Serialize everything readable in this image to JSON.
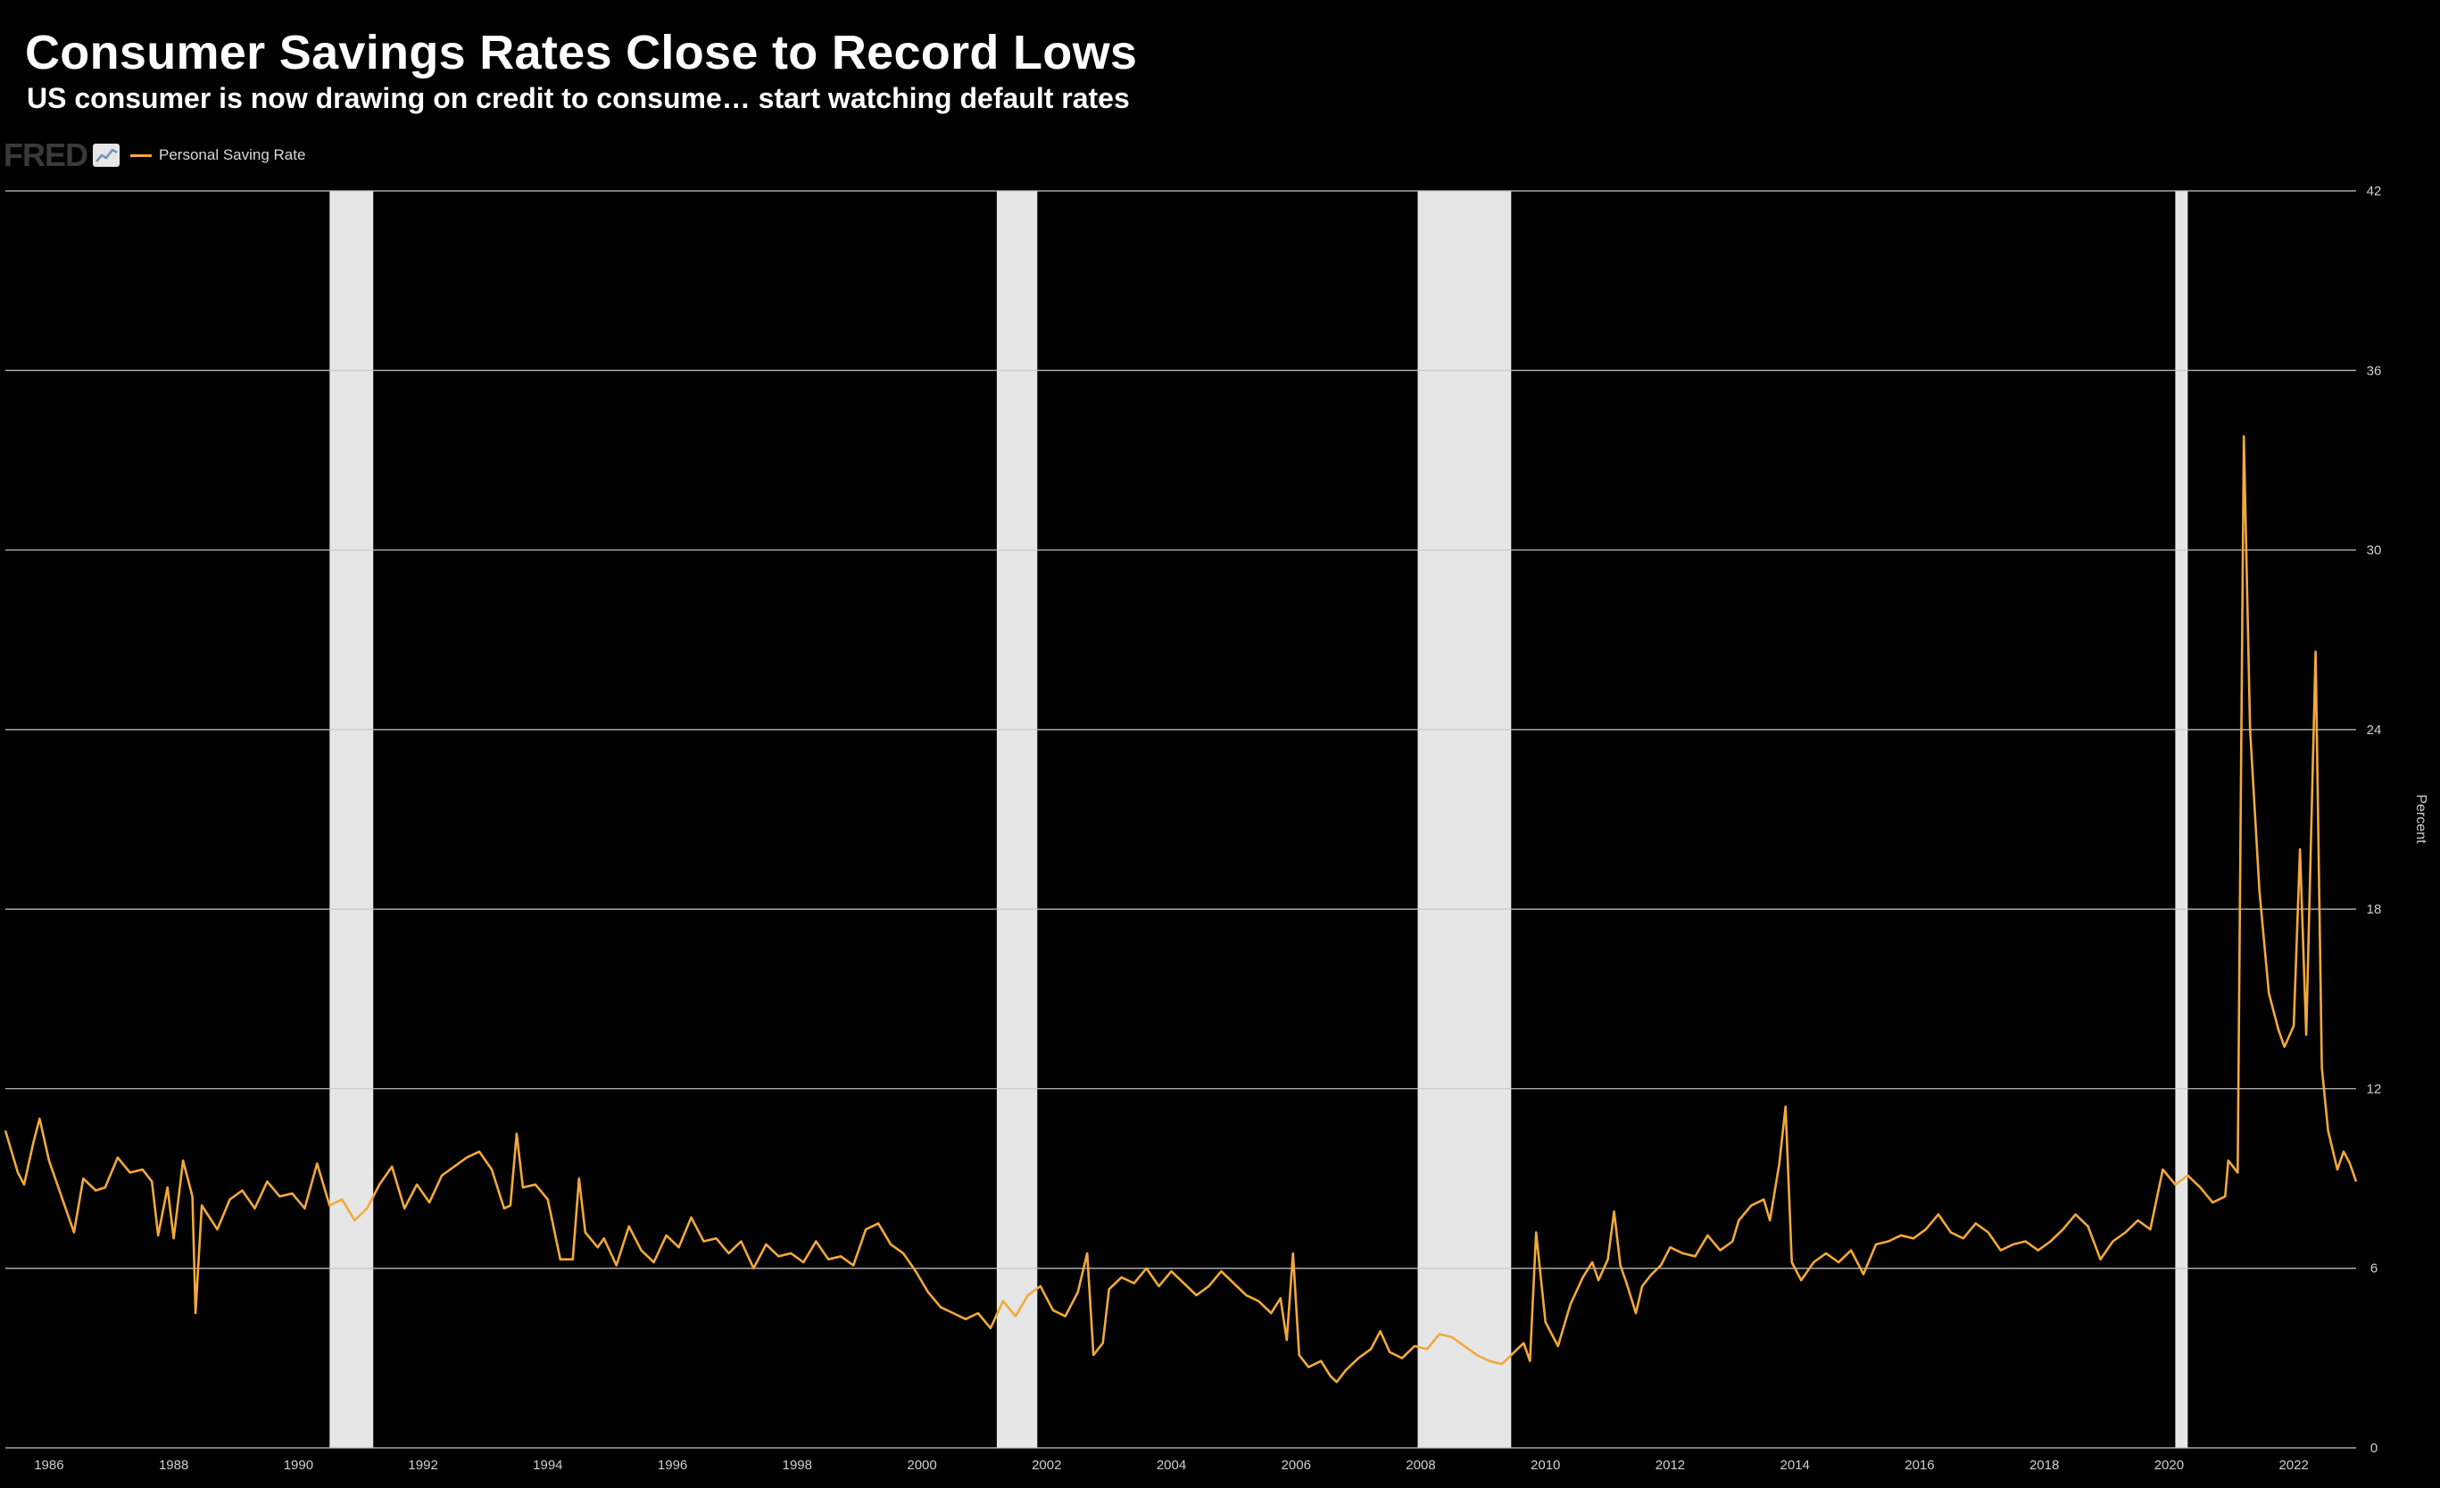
{
  "header": {
    "title": "Consumer Savings Rates Close to Record Lows",
    "subtitle": "US consumer is now drawing on credit to consume… start watching default rates"
  },
  "branding": {
    "logo_text": "FRED",
    "badge_icon": "chart-line-icon"
  },
  "legend": {
    "label": "Personal Saving Rate"
  },
  "colors": {
    "background": "#000000",
    "series": "#f2a93b",
    "recession": "#e6e6e6",
    "grid": "#c8c8c8"
  },
  "chart_data": {
    "type": "line",
    "xlabel": "",
    "ylabel": "Percent",
    "xlim": [
      1985.3,
      2023.0
    ],
    "ylim": [
      0,
      42
    ],
    "yticks": [
      0,
      6,
      12,
      18,
      24,
      30,
      36,
      42
    ],
    "xticks": [
      "1986",
      "1988",
      "1990",
      "1992",
      "1994",
      "1996",
      "1998",
      "2000",
      "2002",
      "2004",
      "2006",
      "2008",
      "2010",
      "2012",
      "2014",
      "2016",
      "2018",
      "2020",
      "2022"
    ],
    "grid": true,
    "legend_position": "top-left",
    "y_axis_position": "right",
    "recessions": [
      [
        1990.5,
        1991.2
      ],
      [
        2001.2,
        2001.85
      ],
      [
        2007.95,
        2009.45
      ],
      [
        2020.1,
        2020.3
      ]
    ],
    "series": [
      {
        "name": "Personal Saving Rate",
        "points": [
          [
            1985.3,
            10.6
          ],
          [
            1985.5,
            9.2
          ],
          [
            1985.6,
            8.8
          ],
          [
            1985.75,
            10.2
          ],
          [
            1985.85,
            11.0
          ],
          [
            1986.0,
            9.6
          ],
          [
            1986.2,
            8.4
          ],
          [
            1986.4,
            7.2
          ],
          [
            1986.55,
            9.0
          ],
          [
            1986.75,
            8.6
          ],
          [
            1986.9,
            8.7
          ],
          [
            1987.1,
            9.7
          ],
          [
            1987.3,
            9.2
          ],
          [
            1987.5,
            9.3
          ],
          [
            1987.65,
            8.9
          ],
          [
            1987.75,
            7.1
          ],
          [
            1987.9,
            8.7
          ],
          [
            1988.0,
            7.0
          ],
          [
            1988.15,
            9.6
          ],
          [
            1988.3,
            8.4
          ],
          [
            1988.35,
            4.5
          ],
          [
            1988.45,
            8.1
          ],
          [
            1988.7,
            7.3
          ],
          [
            1988.9,
            8.3
          ],
          [
            1989.1,
            8.6
          ],
          [
            1989.3,
            8.0
          ],
          [
            1989.5,
            8.9
          ],
          [
            1989.7,
            8.4
          ],
          [
            1989.9,
            8.5
          ],
          [
            1990.1,
            8.0
          ],
          [
            1990.3,
            9.5
          ],
          [
            1990.5,
            8.1
          ],
          [
            1990.7,
            8.3
          ],
          [
            1990.9,
            7.6
          ],
          [
            1991.1,
            8.0
          ],
          [
            1991.3,
            8.8
          ],
          [
            1991.5,
            9.4
          ],
          [
            1991.7,
            8.0
          ],
          [
            1991.9,
            8.8
          ],
          [
            1992.1,
            8.2
          ],
          [
            1992.3,
            9.1
          ],
          [
            1992.5,
            9.4
          ],
          [
            1992.7,
            9.7
          ],
          [
            1992.9,
            9.9
          ],
          [
            1993.1,
            9.3
          ],
          [
            1993.3,
            8.0
          ],
          [
            1993.4,
            8.1
          ],
          [
            1993.5,
            10.5
          ],
          [
            1993.6,
            8.7
          ],
          [
            1993.8,
            8.8
          ],
          [
            1994.0,
            8.3
          ],
          [
            1994.2,
            6.3
          ],
          [
            1994.4,
            6.3
          ],
          [
            1994.5,
            9.0
          ],
          [
            1994.6,
            7.2
          ],
          [
            1994.8,
            6.7
          ],
          [
            1994.9,
            7.0
          ],
          [
            1995.1,
            6.1
          ],
          [
            1995.3,
            7.4
          ],
          [
            1995.5,
            6.6
          ],
          [
            1995.7,
            6.2
          ],
          [
            1995.9,
            7.1
          ],
          [
            1996.1,
            6.7
          ],
          [
            1996.3,
            7.7
          ],
          [
            1996.5,
            6.9
          ],
          [
            1996.7,
            7.0
          ],
          [
            1996.9,
            6.5
          ],
          [
            1997.1,
            6.9
          ],
          [
            1997.3,
            6.0
          ],
          [
            1997.5,
            6.8
          ],
          [
            1997.7,
            6.4
          ],
          [
            1997.9,
            6.5
          ],
          [
            1998.1,
            6.2
          ],
          [
            1998.3,
            6.9
          ],
          [
            1998.5,
            6.3
          ],
          [
            1998.7,
            6.4
          ],
          [
            1998.9,
            6.1
          ],
          [
            1999.1,
            7.3
          ],
          [
            1999.3,
            7.5
          ],
          [
            1999.5,
            6.8
          ],
          [
            1999.7,
            6.5
          ],
          [
            1999.9,
            5.9
          ],
          [
            2000.1,
            5.2
          ],
          [
            2000.3,
            4.7
          ],
          [
            2000.5,
            4.5
          ],
          [
            2000.7,
            4.3
          ],
          [
            2000.9,
            4.5
          ],
          [
            2001.1,
            4.0
          ],
          [
            2001.3,
            4.9
          ],
          [
            2001.5,
            4.4
          ],
          [
            2001.7,
            5.1
          ],
          [
            2001.9,
            5.4
          ],
          [
            2002.1,
            4.6
          ],
          [
            2002.3,
            4.4
          ],
          [
            2002.5,
            5.2
          ],
          [
            2002.65,
            6.5
          ],
          [
            2002.75,
            3.1
          ],
          [
            2002.9,
            3.5
          ],
          [
            2003.0,
            5.3
          ],
          [
            2003.2,
            5.7
          ],
          [
            2003.4,
            5.5
          ],
          [
            2003.6,
            6.0
          ],
          [
            2003.8,
            5.4
          ],
          [
            2004.0,
            5.9
          ],
          [
            2004.2,
            5.5
          ],
          [
            2004.4,
            5.1
          ],
          [
            2004.6,
            5.4
          ],
          [
            2004.8,
            5.9
          ],
          [
            2005.0,
            5.5
          ],
          [
            2005.2,
            5.1
          ],
          [
            2005.4,
            4.9
          ],
          [
            2005.6,
            4.5
          ],
          [
            2005.75,
            5.0
          ],
          [
            2005.85,
            3.6
          ],
          [
            2005.95,
            6.5
          ],
          [
            2006.05,
            3.1
          ],
          [
            2006.2,
            2.7
          ],
          [
            2006.4,
            2.9
          ],
          [
            2006.55,
            2.4
          ],
          [
            2006.65,
            2.2
          ],
          [
            2006.8,
            2.6
          ],
          [
            2007.0,
            3.0
          ],
          [
            2007.2,
            3.3
          ],
          [
            2007.35,
            3.9
          ],
          [
            2007.5,
            3.2
          ],
          [
            2007.7,
            3.0
          ],
          [
            2007.9,
            3.4
          ],
          [
            2008.1,
            3.3
          ],
          [
            2008.3,
            3.8
          ],
          [
            2008.5,
            3.7
          ],
          [
            2008.7,
            3.4
          ],
          [
            2008.9,
            3.1
          ],
          [
            2009.1,
            2.9
          ],
          [
            2009.3,
            2.8
          ],
          [
            2009.5,
            3.2
          ],
          [
            2009.65,
            3.5
          ],
          [
            2009.75,
            2.9
          ],
          [
            2009.85,
            7.2
          ],
          [
            2010.0,
            4.2
          ],
          [
            2010.2,
            3.4
          ],
          [
            2010.4,
            4.8
          ],
          [
            2010.6,
            5.7
          ],
          [
            2010.75,
            6.2
          ],
          [
            2010.85,
            5.6
          ],
          [
            2011.0,
            6.3
          ],
          [
            2011.1,
            7.9
          ],
          [
            2011.2,
            6.1
          ],
          [
            2011.3,
            5.5
          ],
          [
            2011.45,
            4.5
          ],
          [
            2011.55,
            5.4
          ],
          [
            2011.7,
            5.8
          ],
          [
            2011.85,
            6.1
          ],
          [
            2012.0,
            6.7
          ],
          [
            2012.2,
            6.5
          ],
          [
            2012.4,
            6.4
          ],
          [
            2012.6,
            7.1
          ],
          [
            2012.8,
            6.6
          ],
          [
            2013.0,
            6.9
          ],
          [
            2013.1,
            7.6
          ],
          [
            2013.3,
            8.1
          ],
          [
            2013.5,
            8.3
          ],
          [
            2013.6,
            7.6
          ],
          [
            2013.75,
            9.5
          ],
          [
            2013.85,
            11.4
          ],
          [
            2013.95,
            6.2
          ],
          [
            2014.1,
            5.6
          ],
          [
            2014.3,
            6.2
          ],
          [
            2014.5,
            6.5
          ],
          [
            2014.7,
            6.2
          ],
          [
            2014.9,
            6.6
          ],
          [
            2015.1,
            5.8
          ],
          [
            2015.3,
            6.8
          ],
          [
            2015.5,
            6.9
          ],
          [
            2015.7,
            7.1
          ],
          [
            2015.9,
            7.0
          ],
          [
            2016.1,
            7.3
          ],
          [
            2016.3,
            7.8
          ],
          [
            2016.5,
            7.2
          ],
          [
            2016.7,
            7.0
          ],
          [
            2016.9,
            7.5
          ],
          [
            2017.1,
            7.2
          ],
          [
            2017.3,
            6.6
          ],
          [
            2017.5,
            6.8
          ],
          [
            2017.7,
            6.9
          ],
          [
            2017.9,
            6.6
          ],
          [
            2018.1,
            6.9
          ],
          [
            2018.3,
            7.3
          ],
          [
            2018.5,
            7.8
          ],
          [
            2018.7,
            7.4
          ],
          [
            2018.9,
            6.3
          ],
          [
            2019.1,
            6.9
          ],
          [
            2019.3,
            7.2
          ],
          [
            2019.5,
            7.6
          ],
          [
            2019.7,
            7.3
          ],
          [
            2019.9,
            9.3
          ],
          [
            2020.1,
            8.8
          ],
          [
            2020.3,
            9.1
          ],
          [
            2020.5,
            8.7
          ],
          [
            2020.7,
            8.2
          ],
          [
            2020.9,
            8.4
          ],
          [
            2020.95,
            9.6
          ],
          [
            2021.1,
            9.2
          ],
          [
            2021.2,
            33.8
          ],
          [
            2021.3,
            24.0
          ],
          [
            2021.45,
            18.6
          ],
          [
            2021.6,
            15.2
          ],
          [
            2021.75,
            14.0
          ],
          [
            2021.85,
            13.4
          ],
          [
            2022.0,
            14.1
          ],
          [
            2022.1,
            20.0
          ],
          [
            2022.2,
            13.8
          ],
          [
            2022.35,
            26.6
          ],
          [
            2022.45,
            12.7
          ],
          [
            2022.55,
            10.6
          ],
          [
            2022.7,
            9.3
          ],
          [
            2022.8,
            9.9
          ],
          [
            2022.9,
            9.5
          ],
          [
            2023.0,
            8.9
          ]
        ]
      }
    ]
  }
}
